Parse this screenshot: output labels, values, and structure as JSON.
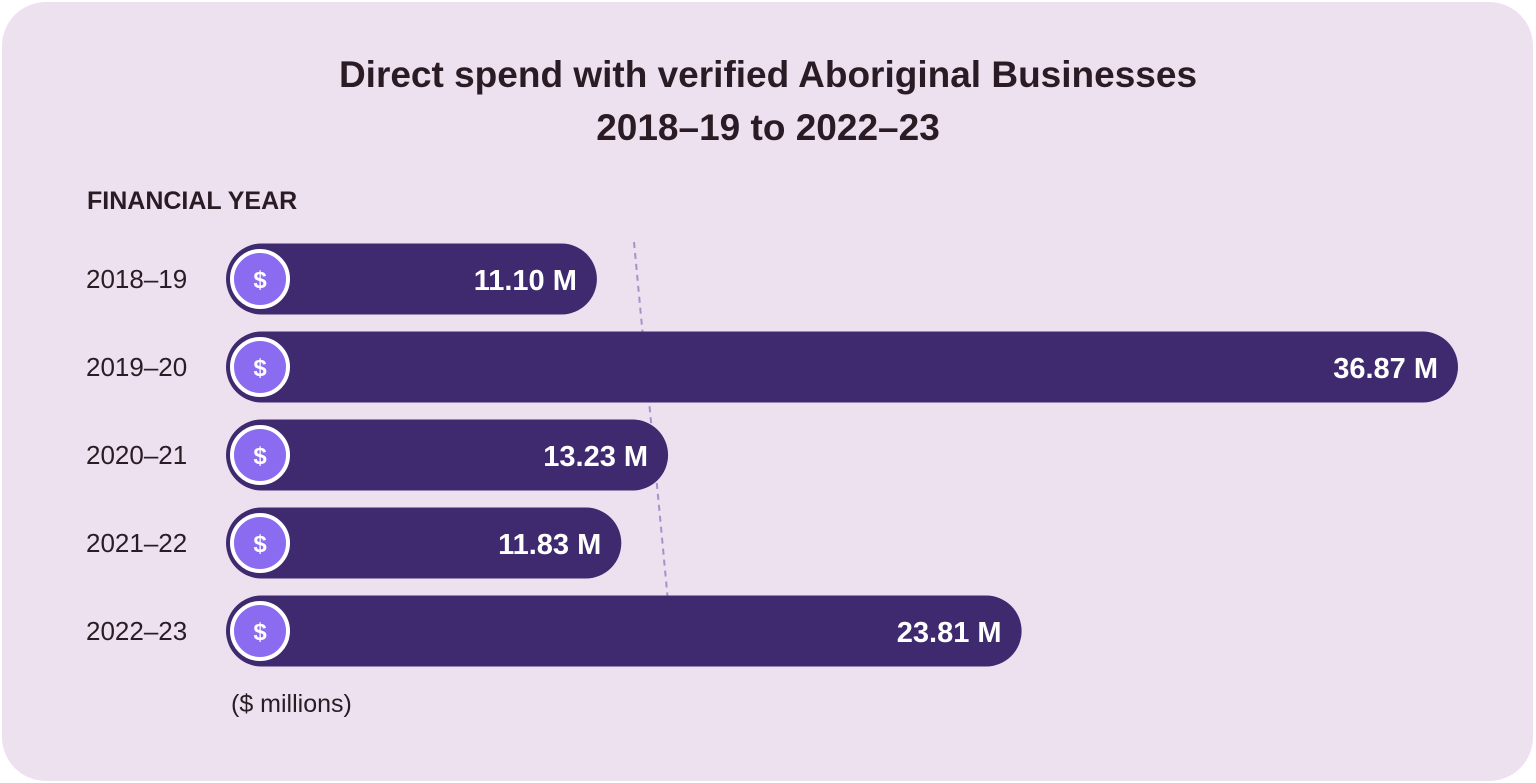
{
  "chart_data": {
    "type": "bar",
    "orientation": "horizontal",
    "title": "Direct spend with verified Aboriginal Businesses",
    "subtitle": "2018–19 to 2022–23",
    "ylabel": "FINANCIAL YEAR",
    "units_note": "($ millions)",
    "categories": [
      "2018–19",
      "2019–20",
      "2020–21",
      "2021–22",
      "2022–23"
    ],
    "values": [
      11.1,
      36.87,
      13.23,
      11.83,
      23.81
    ],
    "value_labels": [
      "11.10 M",
      "36.87 M",
      "13.23 M",
      "11.83 M",
      "23.81 M"
    ],
    "bar_icon": "dollar-icon",
    "grid": false,
    "colors": {
      "background": "#ede0ef",
      "bar": "#3f2a70",
      "icon_fill": "#8b6cf0",
      "icon_ring": "#ffffff",
      "guide_line": "#a593c7",
      "text": "#2a1b24"
    }
  }
}
